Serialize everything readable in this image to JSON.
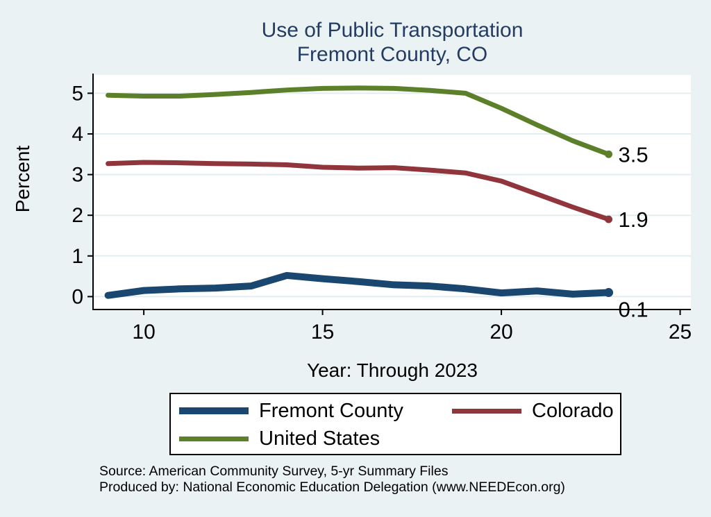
{
  "background_color": "#eaf2f3",
  "title": {
    "line1": "Use of Public Transportation",
    "line2": "Fremont County, CO",
    "color": "#243c63"
  },
  "chart_data": {
    "type": "line",
    "x": [
      9,
      10,
      11,
      12,
      13,
      14,
      15,
      16,
      17,
      18,
      19,
      20,
      21,
      22,
      23
    ],
    "series": [
      {
        "name": "Fremont County",
        "color": "#1a476f",
        "thickness": 10,
        "values": [
          0.03,
          0.15,
          0.19,
          0.21,
          0.26,
          0.52,
          0.44,
          0.37,
          0.29,
          0.26,
          0.19,
          0.09,
          0.14,
          0.06,
          0.1
        ],
        "end_label": "0.1",
        "end_label_position": "below-right"
      },
      {
        "name": "Colorado",
        "color": "#90353b",
        "thickness": 7,
        "values": [
          3.27,
          3.3,
          3.29,
          3.27,
          3.26,
          3.24,
          3.18,
          3.16,
          3.17,
          3.11,
          3.04,
          2.84,
          2.52,
          2.2,
          1.9
        ],
        "end_label": "1.9",
        "end_label_position": "right"
      },
      {
        "name": "United States",
        "color": "#5c7f29",
        "thickness": 7,
        "values": [
          4.95,
          4.93,
          4.93,
          4.97,
          5.02,
          5.08,
          5.12,
          5.13,
          5.12,
          5.07,
          5.0,
          4.63,
          4.22,
          3.83,
          3.5
        ],
        "end_label": "3.5",
        "end_label_position": "right"
      }
    ],
    "xlabel": "Year: Through 2023",
    "ylabel": "Percent",
    "xticks": [
      10,
      15,
      20,
      25
    ],
    "yticks": [
      0,
      1,
      2,
      3,
      4,
      5
    ],
    "xlim": [
      8.6,
      25.3
    ],
    "ylim": [
      -0.3,
      5.45
    ],
    "grid": "horizontal",
    "grid_color": "#e3edf0",
    "plot_bg": "#ffffff",
    "axis_color": "#000000",
    "legend_position": "bottom"
  },
  "legend": {
    "row1_item1": "Fremont County",
    "row1_item2": "Colorado",
    "row2_item1": "United States"
  },
  "footer": {
    "line1": "Source: American Community Survey, 5-yr Summary Files",
    "line2": "Produced by: National Economic Education Delegation (www.NEEDEcon.org)"
  }
}
